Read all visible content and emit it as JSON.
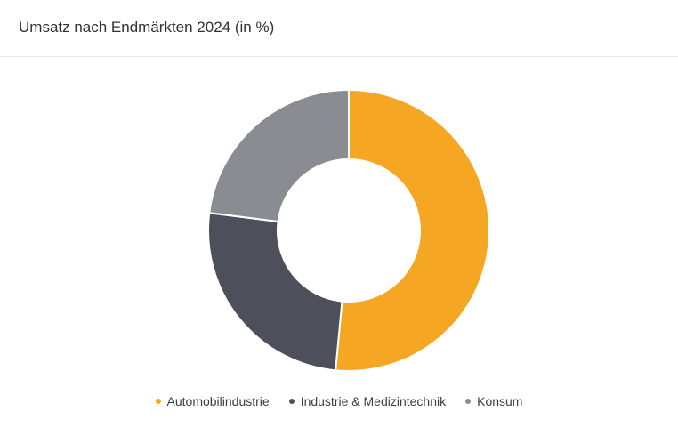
{
  "header": {
    "title": "Umsatz nach Endmärkten 2024 (in %)"
  },
  "chart_data": {
    "type": "pie",
    "title": "Umsatz nach Endmärkten 2024 (in %)",
    "donut": true,
    "legend_position": "bottom",
    "series": [
      {
        "name": "Automobilindustrie",
        "value": 51.5,
        "color": "#f5a623"
      },
      {
        "name": "Industrie & Medizintechnik",
        "value": 25.5,
        "color": "#4d505b"
      },
      {
        "name": "Konsum",
        "value": 23.0,
        "color": "#8a8c92"
      }
    ]
  }
}
